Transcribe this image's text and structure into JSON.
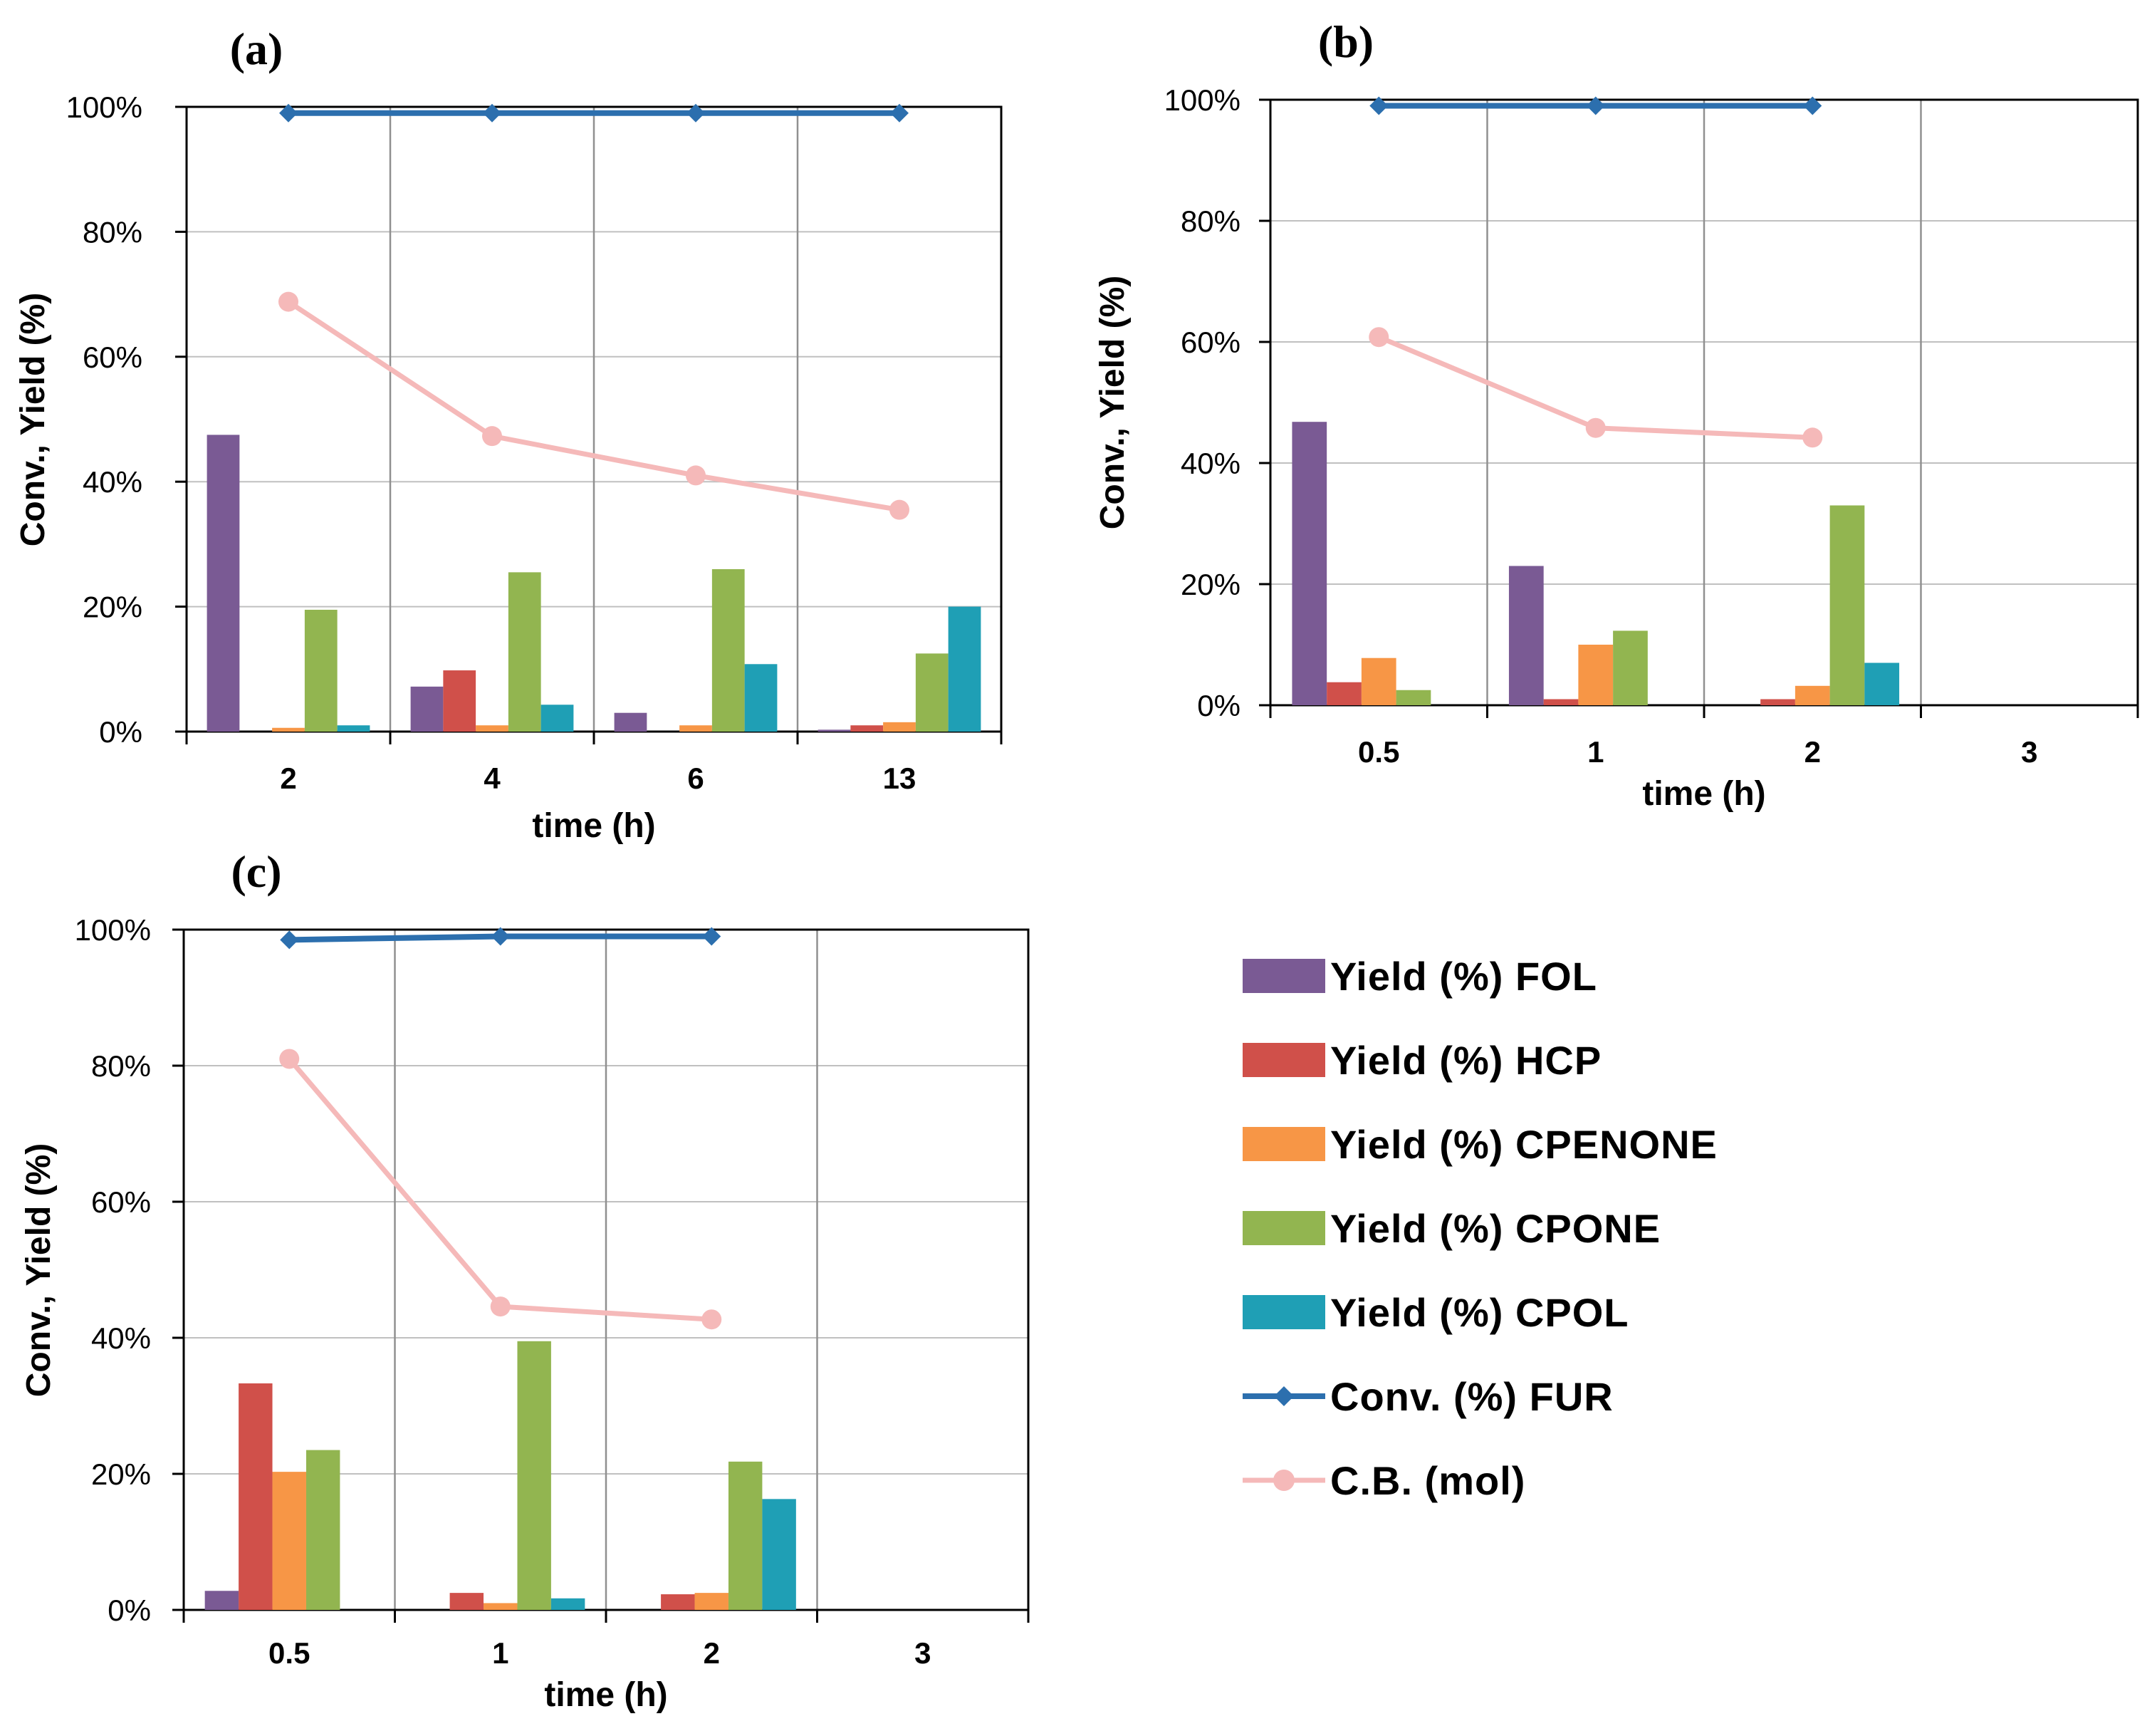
{
  "colors": {
    "FOL": "#7a5a94",
    "HCP": "#d0504a",
    "CPENONE": "#f79646",
    "CPONE": "#92b550",
    "CPOL": "#1f9fb5",
    "FUR": "#2c6fae",
    "CB": "#f5b9b9",
    "grid": "#c0c0c0",
    "axis": "#000000"
  },
  "legend": [
    {
      "key": "FOL",
      "label": "Yield (%) FOL",
      "kind": "bar"
    },
    {
      "key": "HCP",
      "label": "Yield (%) HCP",
      "kind": "bar"
    },
    {
      "key": "CPENONE",
      "label": "Yield (%) CPENONE",
      "kind": "bar"
    },
    {
      "key": "CPONE",
      "label": "Yield (%) CPONE",
      "kind": "bar"
    },
    {
      "key": "CPOL",
      "label": "Yield (%) CPOL",
      "kind": "bar"
    },
    {
      "key": "FUR",
      "label": "Conv. (%) FUR",
      "kind": "line-diamond"
    },
    {
      "key": "CB",
      "label": "C.B. (mol)",
      "kind": "line-circle"
    }
  ],
  "chart_data": [
    {
      "panel": "(a)",
      "type": "bar",
      "xlabel": "time (h)",
      "ylabel": "Conv., Yield (%)",
      "ylim": [
        0,
        100
      ],
      "yticks": [
        "0%",
        "20%",
        "40%",
        "60%",
        "80%",
        "100%"
      ],
      "categories": [
        "2",
        "4",
        "6",
        "13"
      ],
      "grid": true,
      "series": [
        {
          "key": "FOL",
          "name": "Yield (%) FOL",
          "values": [
            47.5,
            7.2,
            3.0,
            0.3
          ]
        },
        {
          "key": "HCP",
          "name": "Yield (%) HCP",
          "values": [
            0,
            9.8,
            0,
            1.0
          ]
        },
        {
          "key": "CPENONE",
          "name": "Yield (%) CPENONE",
          "values": [
            0.6,
            1.0,
            1.0,
            1.5
          ]
        },
        {
          "key": "CPONE",
          "name": "Yield (%) CPONE",
          "values": [
            19.5,
            25.5,
            26.0,
            12.5
          ]
        },
        {
          "key": "CPOL",
          "name": "Yield (%) CPOL",
          "values": [
            1.0,
            4.3,
            10.8,
            20.0
          ]
        }
      ],
      "lines": [
        {
          "key": "FUR",
          "name": "Conv. (%) FUR",
          "values": [
            99,
            99,
            99,
            99
          ]
        },
        {
          "key": "CB",
          "name": "C.B. (mol)",
          "values": [
            68.8,
            47.3,
            41.0,
            35.5
          ]
        }
      ]
    },
    {
      "panel": "(b)",
      "type": "bar",
      "xlabel": "time (h)",
      "ylabel": "Conv., Yield (%)",
      "ylim": [
        0,
        100
      ],
      "yticks": [
        "0%",
        "20%",
        "40%",
        "60%",
        "80%",
        "100%"
      ],
      "categories": [
        "0.5",
        "1",
        "2",
        "3"
      ],
      "grid": true,
      "series": [
        {
          "key": "FOL",
          "name": "Yield (%) FOL",
          "values": [
            46.8,
            23.0,
            0,
            null
          ]
        },
        {
          "key": "HCP",
          "name": "Yield (%) HCP",
          "values": [
            3.8,
            1.0,
            1.0,
            null
          ]
        },
        {
          "key": "CPENONE",
          "name": "Yield (%) CPENONE",
          "values": [
            7.8,
            10.0,
            3.2,
            null
          ]
        },
        {
          "key": "CPONE",
          "name": "Yield (%) CPONE",
          "values": [
            2.5,
            12.3,
            33.0,
            null
          ]
        },
        {
          "key": "CPOL",
          "name": "Yield (%) CPOL",
          "values": [
            0,
            0,
            7.0,
            null
          ]
        }
      ],
      "lines": [
        {
          "key": "FUR",
          "name": "Conv. (%) FUR",
          "values": [
            99,
            99,
            99,
            null
          ]
        },
        {
          "key": "CB",
          "name": "C.B. (mol)",
          "values": [
            60.8,
            45.8,
            44.2,
            null
          ]
        }
      ]
    },
    {
      "panel": "(c)",
      "type": "bar",
      "xlabel": "time (h)",
      "ylabel": "Conv., Yield (%)",
      "ylim": [
        0,
        100
      ],
      "yticks": [
        "0%",
        "20%",
        "40%",
        "60%",
        "80%",
        "100%"
      ],
      "categories": [
        "0.5",
        "1",
        "2",
        "3"
      ],
      "grid": true,
      "series": [
        {
          "key": "FOL",
          "name": "Yield (%) FOL",
          "values": [
            2.8,
            0,
            0,
            null
          ]
        },
        {
          "key": "HCP",
          "name": "Yield (%) HCP",
          "values": [
            33.3,
            2.5,
            2.3,
            null
          ]
        },
        {
          "key": "CPENONE",
          "name": "Yield (%) CPENONE",
          "values": [
            20.3,
            1.0,
            2.5,
            null
          ]
        },
        {
          "key": "CPONE",
          "name": "Yield (%) CPONE",
          "values": [
            23.5,
            39.5,
            21.8,
            null
          ]
        },
        {
          "key": "CPOL",
          "name": "Yield (%) CPOL",
          "values": [
            0,
            1.7,
            16.3,
            null
          ]
        }
      ],
      "lines": [
        {
          "key": "FUR",
          "name": "Conv. (%) FUR",
          "values": [
            98.5,
            99,
            99,
            null
          ]
        },
        {
          "key": "CB",
          "name": "C.B. (mol)",
          "values": [
            81.0,
            44.6,
            42.7,
            null
          ]
        }
      ]
    }
  ]
}
